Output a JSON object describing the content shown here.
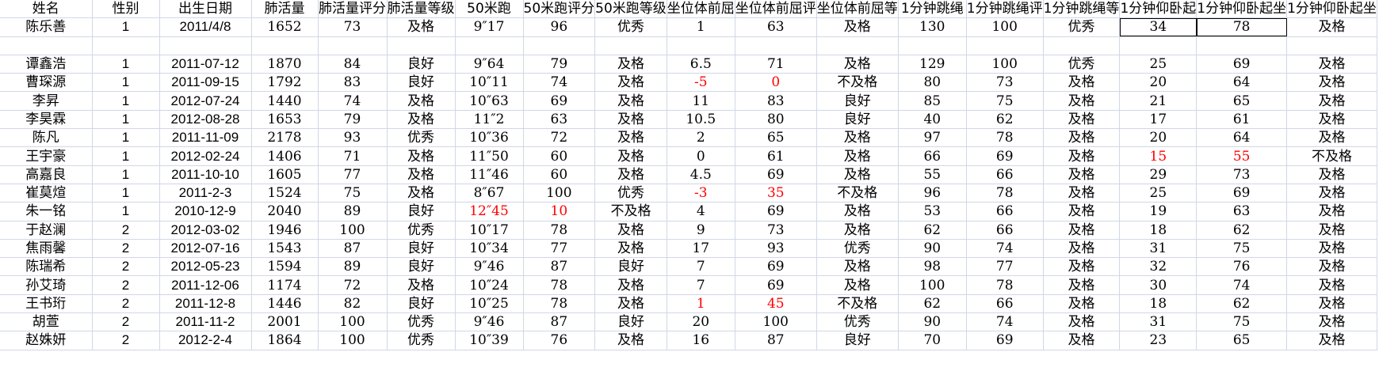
{
  "colors": {
    "grid": "#d0d7e5",
    "fail": "#ff0000",
    "text": "#000000"
  },
  "sheet": {
    "headers": [
      "姓名",
      "性别",
      "出生日期",
      "肺活量",
      "肺活量评分",
      "肺活量等级",
      "50米跑",
      "50米跑评分",
      "50米跑等级",
      "坐位体前屈",
      "坐位体前屈评",
      "坐位体前屈等",
      "1分钟跳绳",
      "1分钟跳绳评",
      "1分钟跳绳等",
      "1分钟仰卧起",
      "1分钟仰卧起坐",
      "1分钟仰卧起坐"
    ],
    "rows": [
      [
        "陈乐善",
        "1",
        "2011/4/8",
        "1652",
        "73",
        "及格",
        "9″17",
        "96",
        "优秀",
        "1",
        "63",
        "及格",
        "130",
        "100",
        "优秀",
        "34",
        "78",
        "及格"
      ],
      [
        "",
        "",
        "",
        "",
        "",
        "",
        "",
        "",
        "",
        "",
        "",
        "",
        "",
        "",
        "",
        "",
        "",
        ""
      ],
      [
        "谭鑫浩",
        "1",
        "2011-07-12",
        "1870",
        "84",
        "良好",
        "9″64",
        "79",
        "及格",
        "6.5",
        "71",
        "及格",
        "129",
        "100",
        "优秀",
        "25",
        "69",
        "及格"
      ],
      [
        "曹琛源",
        "1",
        "2011-09-15",
        "1792",
        "83",
        "良好",
        "10″11",
        "74",
        "及格",
        "-5",
        "0",
        "不及格",
        "80",
        "73",
        "及格",
        "20",
        "64",
        "及格"
      ],
      [
        "李昇",
        "1",
        "2012-07-24",
        "1440",
        "74",
        "及格",
        "10″63",
        "69",
        "及格",
        "11",
        "83",
        "良好",
        "85",
        "75",
        "及格",
        "21",
        "65",
        "及格"
      ],
      [
        "李昊霖",
        "1",
        "2012-08-28",
        "1653",
        "79",
        "及格",
        "11″2",
        "63",
        "及格",
        "10.5",
        "80",
        "良好",
        "40",
        "62",
        "及格",
        "17",
        "61",
        "及格"
      ],
      [
        "陈凡",
        "1",
        "2011-11-09",
        "2178",
        "93",
        "优秀",
        "10″36",
        "72",
        "及格",
        "2",
        "65",
        "及格",
        "97",
        "78",
        "及格",
        "20",
        "64",
        "及格"
      ],
      [
        "王宇豪",
        "1",
        "2012-02-24",
        "1406",
        "71",
        "及格",
        "11″50",
        "60",
        "及格",
        "0",
        "61",
        "及格",
        "66",
        "69",
        "及格",
        "15",
        "55",
        "不及格"
      ],
      [
        "高嘉良",
        "1",
        "2011-10-10",
        "1605",
        "77",
        "及格",
        "11″46",
        "60",
        "及格",
        "4.5",
        "69",
        "及格",
        "55",
        "66",
        "及格",
        "29",
        "73",
        "及格"
      ],
      [
        "崔莫煊",
        "1",
        "2011-2-3",
        "1524",
        "75",
        "及格",
        "8″67",
        "100",
        "优秀",
        "-3",
        "35",
        "不及格",
        "96",
        "78",
        "及格",
        "25",
        "69",
        "及格"
      ],
      [
        "朱一铭",
        "1",
        "2010-12-9",
        "2040",
        "89",
        "良好",
        "12″45",
        "10",
        "不及格",
        "4",
        "69",
        "及格",
        "53",
        "66",
        "及格",
        "19",
        "63",
        "及格"
      ],
      [
        "于赵澜",
        "2",
        "2012-03-02",
        "1946",
        "100",
        "优秀",
        "10″17",
        "78",
        "及格",
        "9",
        "73",
        "及格",
        "62",
        "66",
        "及格",
        "18",
        "62",
        "及格"
      ],
      [
        "焦雨馨",
        "2",
        "2012-07-16",
        "1543",
        "87",
        "良好",
        "10″34",
        "77",
        "及格",
        "17",
        "93",
        "优秀",
        "90",
        "74",
        "及格",
        "31",
        "75",
        "及格"
      ],
      [
        "陈瑞希",
        "2",
        "2012-05-23",
        "1594",
        "89",
        "良好",
        "9″46",
        "87",
        "良好",
        "7",
        "69",
        "及格",
        "98",
        "77",
        "及格",
        "32",
        "76",
        "及格"
      ],
      [
        "孙艾琦",
        "2",
        "2011-12-06",
        "1174",
        "72",
        "及格",
        "10″24",
        "78",
        "及格",
        "7",
        "69",
        "及格",
        "100",
        "78",
        "及格",
        "30",
        "74",
        "及格"
      ],
      [
        "王书珩",
        "2",
        "2011-12-8",
        "1446",
        "82",
        "良好",
        "10″25",
        "78",
        "及格",
        "1",
        "45",
        "不及格",
        "62",
        "66",
        "及格",
        "18",
        "62",
        "及格"
      ],
      [
        "胡萱",
        "2",
        "2011-11-2",
        "2001",
        "100",
        "优秀",
        "9″46",
        "87",
        "良好",
        "20",
        "100",
        "优秀",
        "90",
        "74",
        "及格",
        "31",
        "75",
        "及格"
      ],
      [
        "赵姝妍",
        "2",
        "2012-2-4",
        "1864",
        "100",
        "优秀",
        "10″39",
        "76",
        "及格",
        "16",
        "87",
        "良好",
        "70",
        "69",
        "及格",
        "23",
        "65",
        "及格"
      ]
    ]
  }
}
